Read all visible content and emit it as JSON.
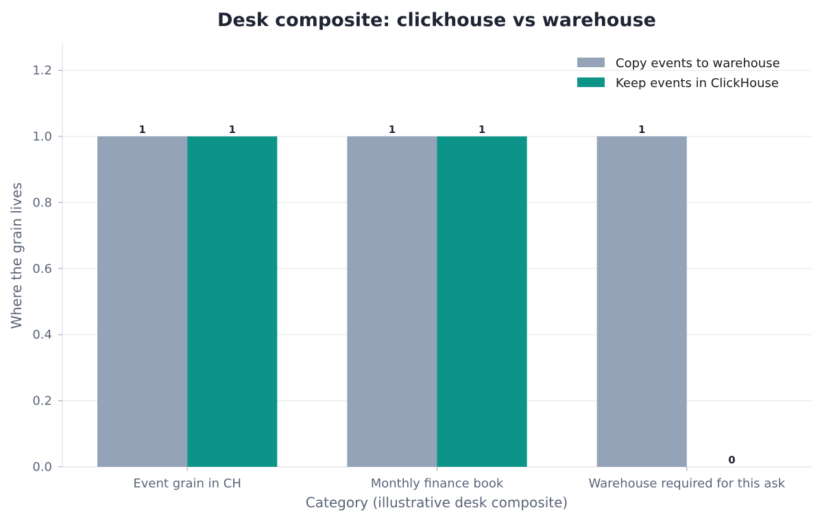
{
  "chart_data": {
    "type": "bar",
    "title": "Desk composite: clickhouse vs warehouse",
    "xlabel": "Category (illustrative desk composite)",
    "ylabel": "Where the grain lives",
    "categories": [
      "Event grain in CH",
      "Monthly finance book",
      "Warehouse required for this ask"
    ],
    "series": [
      {
        "name": "Copy events to warehouse",
        "values": [
          1,
          1,
          1
        ],
        "color": "#94a3b8"
      },
      {
        "name": "Keep events in ClickHouse",
        "values": [
          1,
          1,
          0
        ],
        "color": "#0d9488"
      }
    ],
    "ylim": [
      0,
      1.28
    ],
    "yticks": [
      "0.0",
      "0.2",
      "0.4",
      "0.6",
      "0.8",
      "1.0",
      "1.2"
    ],
    "grid": "y",
    "legend_position": "top-right"
  }
}
